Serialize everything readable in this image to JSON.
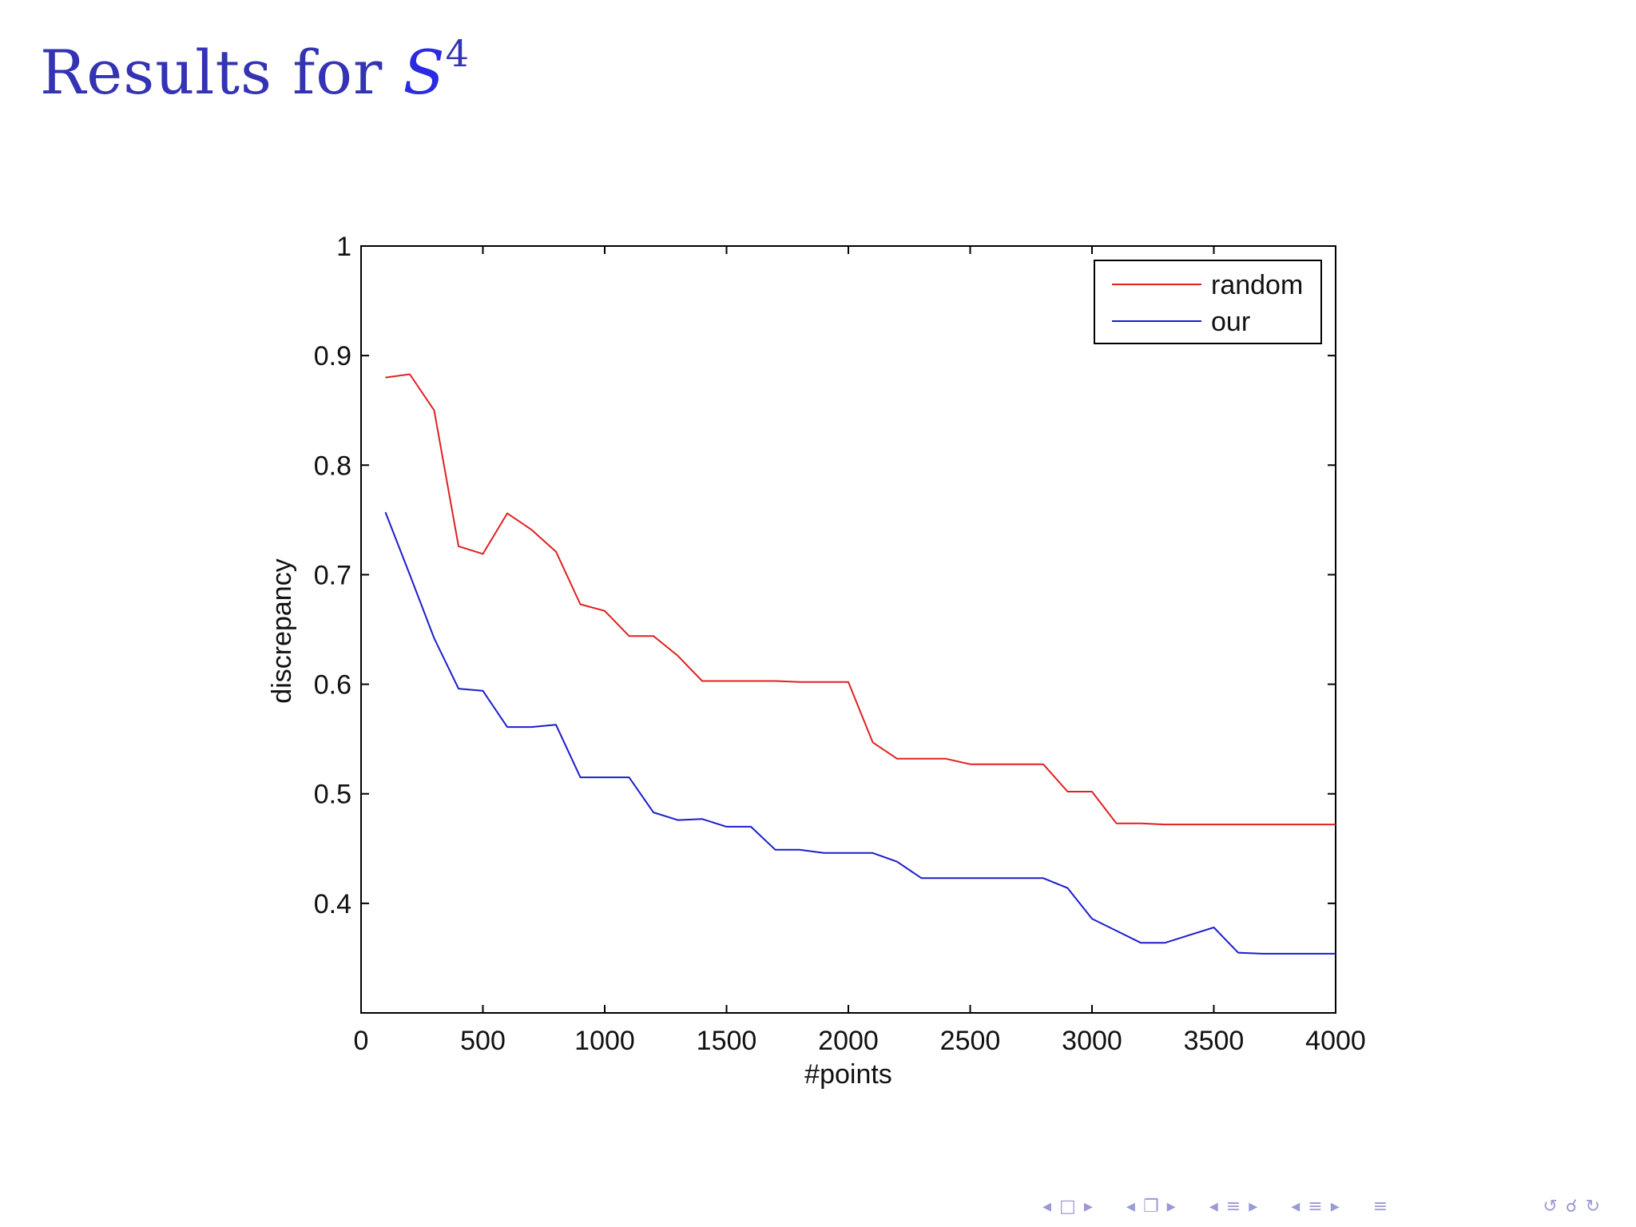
{
  "slide": {
    "title_text": "Results for",
    "title_math": "S",
    "title_superscript": "4",
    "title_color": "#3333b3"
  },
  "chart_data": {
    "type": "line",
    "xlabel": "#points",
    "ylabel": "discrepancy",
    "xlim": [
      0,
      4000
    ],
    "ylim": [
      0.3,
      1.0
    ],
    "xticks": [
      0,
      500,
      1000,
      1500,
      2000,
      2500,
      3000,
      3500,
      4000
    ],
    "yticks": [
      0.4,
      0.5,
      0.6,
      0.7,
      0.8,
      0.9,
      1
    ],
    "ytick_labels": [
      "0.4",
      "0.5",
      "0.6",
      "0.7",
      "0.8",
      "0.9",
      "1"
    ],
    "grid": false,
    "legend_position": "top-right",
    "x": [
      100,
      200,
      300,
      400,
      500,
      600,
      700,
      800,
      900,
      1000,
      1100,
      1200,
      1300,
      1400,
      1500,
      1600,
      1700,
      1800,
      1900,
      2000,
      2100,
      2200,
      2300,
      2400,
      2500,
      2600,
      2700,
      2800,
      2900,
      3000,
      3100,
      3200,
      3300,
      3400,
      3500,
      3600,
      3700,
      3800,
      3900,
      4000
    ],
    "series": [
      {
        "name": "random",
        "color": "#e02020",
        "values": [
          0.88,
          0.883,
          0.85,
          0.726,
          0.719,
          0.756,
          0.741,
          0.721,
          0.673,
          0.667,
          0.644,
          0.644,
          0.626,
          0.603,
          0.603,
          0.603,
          0.603,
          0.602,
          0.602,
          0.602,
          0.547,
          0.532,
          0.532,
          0.532,
          0.527,
          0.527,
          0.527,
          0.527,
          0.502,
          0.502,
          0.473,
          0.473,
          0.472,
          0.472,
          0.472,
          0.472,
          0.472,
          0.472,
          0.472,
          0.472
        ]
      },
      {
        "name": "our",
        "color": "#1c1ccc",
        "values": [
          0.757,
          0.7,
          0.642,
          0.596,
          0.594,
          0.561,
          0.561,
          0.563,
          0.515,
          0.515,
          0.515,
          0.483,
          0.476,
          0.477,
          0.47,
          0.47,
          0.449,
          0.449,
          0.446,
          0.446,
          0.446,
          0.438,
          0.423,
          0.423,
          0.423,
          0.423,
          0.423,
          0.423,
          0.414,
          0.386,
          0.375,
          0.364,
          0.364,
          0.371,
          0.378,
          0.355,
          0.354,
          0.354,
          0.354,
          0.354
        ]
      }
    ]
  },
  "nav": {
    "color": "#9a9ad6",
    "icons": [
      "arrow-left-icon",
      "frame-icon",
      "arrow-right-icon",
      "subsection-icon",
      "section-icon",
      "zoom-icon"
    ]
  }
}
